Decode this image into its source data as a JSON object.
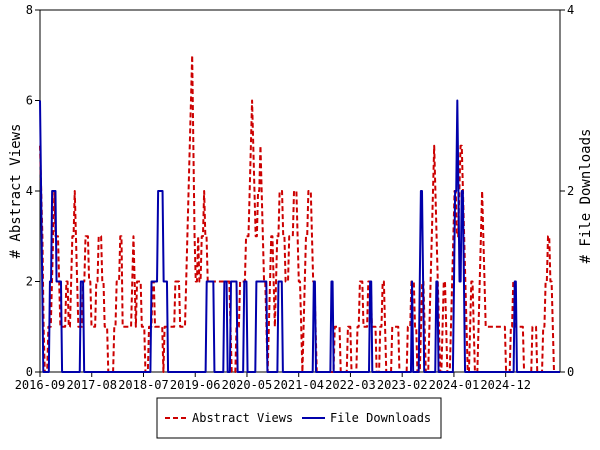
{
  "chart_data": {
    "type": "line",
    "x_tick_labels": [
      "2016-09",
      "2017-08",
      "2018-07",
      "2019-06",
      "2020-05",
      "2021-04",
      "2022-03",
      "2023-02",
      "2024-01",
      "2024-12"
    ],
    "ylabel_left": "# Abstract Views",
    "ylabel_right": "# File Downloads",
    "ylim_left": [
      0,
      8
    ],
    "ylim_right": [
      0,
      4
    ],
    "yticks_left": [
      "0",
      "2",
      "4",
      "6",
      "8"
    ],
    "yticks_right": [
      "0",
      "2",
      "4"
    ],
    "grid": false,
    "legend_position": "bottom",
    "series": [
      {
        "name": "Abstract Views",
        "axis": "left",
        "color": "#cc0000",
        "dash": "dashed",
        "values": [
          5,
          4,
          3,
          1,
          0,
          0,
          0,
          1,
          1,
          1,
          2,
          3,
          4,
          3,
          3,
          3,
          2,
          1,
          1,
          1,
          1,
          1,
          2,
          2,
          1,
          1,
          2,
          3,
          3,
          4,
          3,
          2,
          1,
          1,
          1,
          1,
          2,
          2,
          3,
          3,
          3,
          2,
          2,
          1,
          1,
          1,
          1,
          2,
          2,
          3,
          3,
          3,
          2,
          2,
          1,
          1,
          1,
          0,
          0,
          0,
          0,
          0,
          1,
          1,
          2,
          2,
          2,
          3,
          3,
          1,
          1,
          1,
          1,
          1,
          1,
          1,
          1,
          2,
          3,
          2,
          1,
          2,
          2,
          2,
          2,
          1,
          1,
          1,
          0,
          0,
          0,
          1,
          1,
          1,
          2,
          2,
          1,
          1,
          1,
          1,
          1,
          1,
          1,
          0,
          1,
          1,
          1,
          1,
          1,
          1,
          1,
          1,
          1,
          2,
          2,
          2,
          2,
          1,
          1,
          1,
          1,
          1,
          2,
          3,
          4,
          5,
          6,
          7,
          5,
          3,
          2,
          2,
          3,
          2,
          2,
          3,
          3,
          4,
          3,
          3,
          2,
          2,
          2,
          2,
          2,
          2,
          2,
          2,
          2,
          2,
          2,
          2,
          2,
          2,
          2,
          2,
          2,
          2,
          2,
          1,
          0,
          0,
          0,
          0,
          1,
          1,
          1,
          2,
          2,
          2,
          2,
          2,
          3,
          3,
          3,
          4,
          5,
          6,
          5,
          4,
          3,
          3,
          4,
          4,
          5,
          4,
          3,
          2,
          2,
          1,
          0,
          1,
          2,
          3,
          3,
          2,
          1,
          2,
          3,
          3,
          4,
          4,
          4,
          3,
          3,
          2,
          2,
          2,
          3,
          3,
          3,
          3,
          4,
          4,
          4,
          3,
          2,
          2,
          1,
          0,
          1,
          2,
          3,
          3,
          4,
          4,
          4,
          3,
          2,
          2,
          1,
          0,
          0,
          0,
          0,
          0,
          0,
          0,
          0,
          0,
          0,
          0,
          0,
          0,
          0,
          0,
          1,
          1,
          1,
          1,
          1,
          0,
          0,
          0,
          0,
          0,
          0,
          1,
          1,
          1,
          0,
          0,
          0,
          0,
          0,
          1,
          1,
          2,
          2,
          2,
          1,
          1,
          1,
          1,
          2,
          2,
          2,
          1,
          1,
          1,
          1,
          0,
          0,
          0,
          1,
          1,
          2,
          2,
          1,
          0,
          0,
          0,
          0,
          0,
          1,
          1,
          1,
          1,
          1,
          1,
          0,
          0,
          0,
          0,
          0,
          0,
          0,
          1,
          1,
          1,
          2,
          2,
          2,
          1,
          1,
          0,
          0,
          0,
          1,
          2,
          2,
          1,
          0,
          0,
          0,
          1,
          2,
          3,
          4,
          5,
          4,
          3,
          2,
          1,
          0,
          0,
          1,
          2,
          2,
          1,
          0,
          0,
          0,
          1,
          2,
          3,
          4,
          4,
          3,
          3,
          4,
          5,
          5,
          4,
          3,
          2,
          1,
          0,
          0,
          1,
          2,
          2,
          1,
          0,
          0,
          0,
          1,
          2,
          3,
          4,
          3,
          2,
          1,
          1,
          1,
          1,
          1,
          1,
          1,
          1,
          1,
          1,
          1,
          1,
          1,
          1,
          1,
          1,
          1,
          0,
          0,
          0,
          0,
          1,
          1,
          2,
          2,
          1,
          1,
          1,
          1,
          1,
          1,
          1,
          0,
          0,
          0,
          0,
          0,
          0,
          0,
          1,
          1,
          1,
          1,
          0,
          0,
          0,
          0,
          0,
          1,
          1,
          2,
          2,
          3,
          3,
          2,
          2,
          1,
          0,
          0,
          0,
          0,
          0,
          0
        ]
      },
      {
        "name": "File Downloads",
        "axis": "right",
        "color": "#0000aa",
        "dash": "solid",
        "values": [
          3,
          2,
          1,
          0,
          0,
          0,
          0,
          0,
          0,
          1,
          1,
          2,
          2,
          2,
          2,
          1,
          1,
          1,
          1,
          1,
          0,
          0,
          0,
          0,
          0,
          0,
          0,
          0,
          0,
          0,
          0,
          0,
          0,
          0,
          0,
          0,
          0,
          1,
          1,
          1,
          0,
          0,
          0,
          0,
          0,
          0,
          0,
          0,
          0,
          0,
          0,
          0,
          0,
          0,
          0,
          0,
          0,
          0,
          0,
          0,
          0,
          0,
          0,
          0,
          0,
          0,
          0,
          0,
          0,
          0,
          0,
          0,
          0,
          0,
          0,
          0,
          0,
          0,
          0,
          0,
          0,
          0,
          0,
          0,
          0,
          0,
          0,
          0,
          0,
          0,
          0,
          0,
          0,
          0,
          0,
          0,
          0,
          0,
          0,
          0,
          0,
          1,
          1,
          1,
          1,
          1,
          1,
          2,
          2,
          2,
          2,
          2,
          1,
          1,
          1,
          1,
          0,
          0,
          0,
          0,
          0,
          0,
          0,
          0,
          0,
          0,
          0,
          0,
          0,
          0,
          0,
          0,
          0,
          0,
          0,
          0,
          0,
          0,
          0,
          0,
          0,
          0,
          0,
          0,
          0,
          0,
          0,
          0,
          0,
          0,
          0,
          1,
          1,
          1,
          1,
          1,
          1,
          1,
          0,
          0,
          0,
          0,
          0,
          0,
          0,
          0,
          0,
          1,
          1,
          1,
          0,
          0,
          0,
          1,
          1,
          1,
          1,
          1,
          1,
          0,
          0,
          0,
          0,
          0,
          0,
          1,
          1,
          1,
          0,
          0,
          0,
          0,
          0,
          0,
          0,
          0,
          1,
          1,
          1,
          1,
          1,
          1,
          1,
          1,
          1,
          1,
          0,
          0,
          0,
          0,
          0,
          0,
          0,
          0,
          0,
          0,
          1,
          1,
          1,
          1,
          0,
          0,
          0,
          0,
          0,
          0,
          0,
          0,
          0,
          0,
          0,
          0,
          0,
          0,
          0,
          0,
          0,
          0,
          0,
          0,
          0,
          0,
          0,
          0,
          0,
          0,
          0,
          0,
          1,
          1,
          0,
          0,
          0,
          0,
          0,
          0,
          0,
          0,
          0,
          0,
          0,
          0,
          0,
          0,
          1,
          1,
          0,
          0,
          0,
          0,
          0,
          0,
          0,
          0,
          0,
          0,
          0,
          0,
          0,
          0,
          0,
          0,
          0,
          0,
          0,
          0,
          0,
          0,
          0,
          0,
          0,
          0,
          0,
          0,
          0,
          0,
          0,
          0,
          0,
          1,
          1,
          0,
          0,
          0,
          0,
          0,
          0,
          0,
          0,
          0,
          0,
          0,
          0,
          0,
          0,
          0,
          0,
          0,
          0,
          0,
          0,
          0,
          0,
          0,
          0,
          0,
          0,
          0,
          0,
          0,
          0,
          0,
          0,
          0,
          0,
          0,
          0,
          1,
          0,
          0,
          0,
          0,
          0,
          0,
          1,
          2,
          2,
          1,
          0,
          0,
          0,
          0,
          0,
          0,
          0,
          0,
          0,
          0,
          0,
          1,
          1,
          0,
          0,
          0,
          0,
          0,
          0,
          0,
          0,
          0,
          0,
          0,
          0,
          0,
          0,
          1,
          2,
          2,
          3,
          2,
          1,
          1,
          2,
          2,
          1,
          0,
          0,
          0,
          0,
          0,
          0,
          0,
          0,
          0,
          0,
          0,
          0,
          0,
          0,
          0,
          0,
          0,
          0,
          0,
          0,
          0,
          0,
          0,
          0,
          0,
          0,
          0,
          0,
          0,
          0,
          0,
          0,
          0,
          0,
          0,
          0,
          0,
          0,
          0,
          0,
          0,
          0,
          0,
          0,
          0,
          1,
          1,
          0,
          0,
          0,
          0,
          0,
          0,
          0,
          0,
          0,
          0,
          0,
          0,
          0,
          0,
          0,
          0,
          0,
          0,
          0,
          0,
          0,
          0,
          0,
          0,
          0,
          0,
          0,
          0,
          0,
          0,
          0,
          0,
          0,
          0,
          0,
          0,
          0,
          0,
          0,
          0
        ]
      }
    ]
  }
}
